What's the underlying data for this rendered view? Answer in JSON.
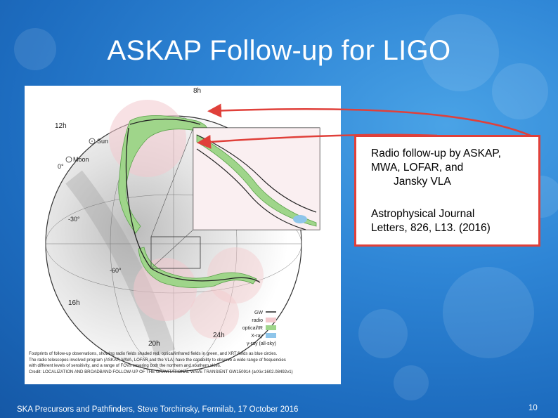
{
  "slide": {
    "title": "ASKAP Follow-up for LIGO",
    "footer": "SKA Precursors and Pathfinders, Steve Torchinsky, Fermilab, 17 October 2016",
    "page_number": "10"
  },
  "callout": {
    "line1": "Radio follow-up by ASKAP,",
    "line2": "MWA, LOFAR, and",
    "line3": "Jansky VLA",
    "ref1": "Astrophysical Journal",
    "ref2": "Letters, 826, L13. (2016)"
  },
  "figure": {
    "labels": {
      "h8": "8h",
      "h12": "12h",
      "h16": "16h",
      "h20": "20h",
      "h24": "24h",
      "sun": "Sun",
      "moon": "Moon",
      "deg0": "0°",
      "deg_m30": "-30°",
      "deg_m60": "-60°"
    },
    "legend": {
      "gw": "GW",
      "radio": "radio",
      "optical": "optical/IR",
      "xray": "X-ray",
      "gamma": "γ-ray (all-sky)"
    },
    "colors": {
      "radio": "#f3c9cd",
      "optical": "#9fd58a",
      "xray": "#8ec5ea",
      "gw": "#222222",
      "arrow": "#e0403a"
    },
    "caption": {
      "line1": "Footprints of follow-up observations, showing radio fields shaded red, optical/infrared fields in green, and XRT fields as blue circles.",
      "line2": "The radio telescopes involved program (ASKAP, MWA, LOFAR and the VLA) have the capability to observe a wide range of frequencies",
      "line3": "with different levels of sensitivity, and a range of FOVs covering both the northern and southern skies.",
      "line4": "Credit: LOCALIZATION AND BROADBAND FOLLOW-UP OF THE GRAVITATIONAL WAVE TRANSIENT GW150914 (arXiv:1602.08492v1)"
    }
  }
}
